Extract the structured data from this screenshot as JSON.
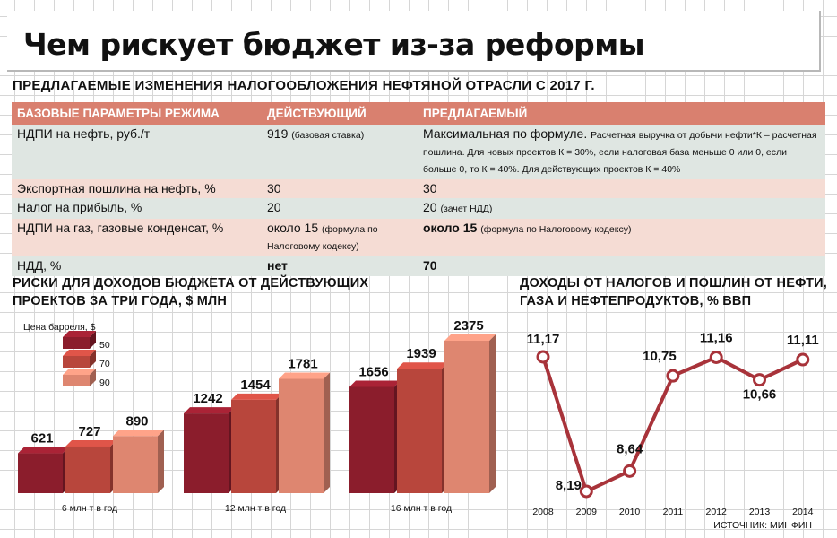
{
  "header": {
    "title": "Чем рискует бюджет из-за реформы"
  },
  "table": {
    "subtitle": "ПРЕДЛАГАЕМЫЕ ИЗМЕНЕНИЯ НАЛОГООБЛОЖЕНИЯ НЕФТЯНОЙ ОТРАСЛИ С 2017 Г.",
    "headers": [
      "БАЗОВЫЕ ПАРАМЕТРЫ РЕЖИМА",
      "ДЕЙСТВУЮЩИЙ",
      "ПРЕДЛАГАЕМЫЙ"
    ],
    "rows": [
      {
        "param": "НДПИ на нефть, руб./т",
        "current": "919",
        "current_note": "(базовая ставка)",
        "proposed": "Максимальная по формуле.",
        "proposed_note": "Расчетная выручка от добычи нефти*К – расчетная пошлина. Для новых проектов К = 30%, если налоговая база меньше 0 или 0, если больше 0, то К = 40%. Для действующих проектов К = 40%"
      },
      {
        "param": "Экспортная пошлина на нефть, %",
        "current": "30",
        "current_note": "",
        "proposed": "30",
        "proposed_note": ""
      },
      {
        "param": "Налог на прибыль, %",
        "current": "20",
        "current_note": "",
        "proposed": "20",
        "proposed_note": "(зачет НДД)"
      },
      {
        "param": "НДПИ на газ, газовые конденсат, %",
        "current": "около 15",
        "current_note": "(формула по Налоговому кодексу)",
        "proposed": "около 15",
        "proposed_note": "(формула по Налоговому кодексу)"
      },
      {
        "param": "НДД, %",
        "current": "нет",
        "current_note": "",
        "proposed": "70",
        "proposed_note": ""
      }
    ]
  },
  "colors": {
    "dark": "#8b1d2c",
    "mid": "#b8463c",
    "light": "#de8670",
    "line": "#a8333a",
    "header_row": "#d9806f",
    "row_green": "#dfe6e2",
    "row_pink": "#f5dcd4"
  },
  "chart_data": [
    {
      "type": "bar",
      "title": "РИСКИ ДЛЯ ДОХОДОВ БЮДЖЕТА ОТ ДЕЙСТВУЮЩИХ ПРОЕКТОВ ЗА ТРИ ГОДА, $ МЛН",
      "legend_title": "Цена барреля, $",
      "legend_position": "top-left",
      "categories": [
        "6 млн т в год",
        "12 млн т в год",
        "16 млн т в год"
      ],
      "series": [
        {
          "name": "50",
          "values": [
            621,
            1242,
            1656
          ]
        },
        {
          "name": "70",
          "values": [
            727,
            1454,
            1939
          ]
        },
        {
          "name": "90",
          "values": [
            890,
            1781,
            2375
          ]
        }
      ],
      "ylim": [
        0,
        2375
      ]
    },
    {
      "type": "line",
      "title": "ДОХОДЫ ОТ НАЛОГОВ И ПОШЛИН ОТ НЕФТИ, ГАЗА И НЕФТЕПРОДУКТОВ, % ВВП",
      "x": [
        "2008",
        "2009",
        "2010",
        "2011",
        "2012",
        "2013",
        "2014"
      ],
      "y": [
        11.17,
        8.19,
        8.64,
        10.75,
        11.16,
        10.66,
        11.11
      ],
      "labels": [
        "11,17",
        "8,19",
        "8,64",
        "10,75",
        "11,16",
        "10,66",
        "11,11"
      ],
      "ylim": [
        8.19,
        11.17
      ],
      "source": "ИСТОЧНИК: МИНФИН"
    }
  ]
}
